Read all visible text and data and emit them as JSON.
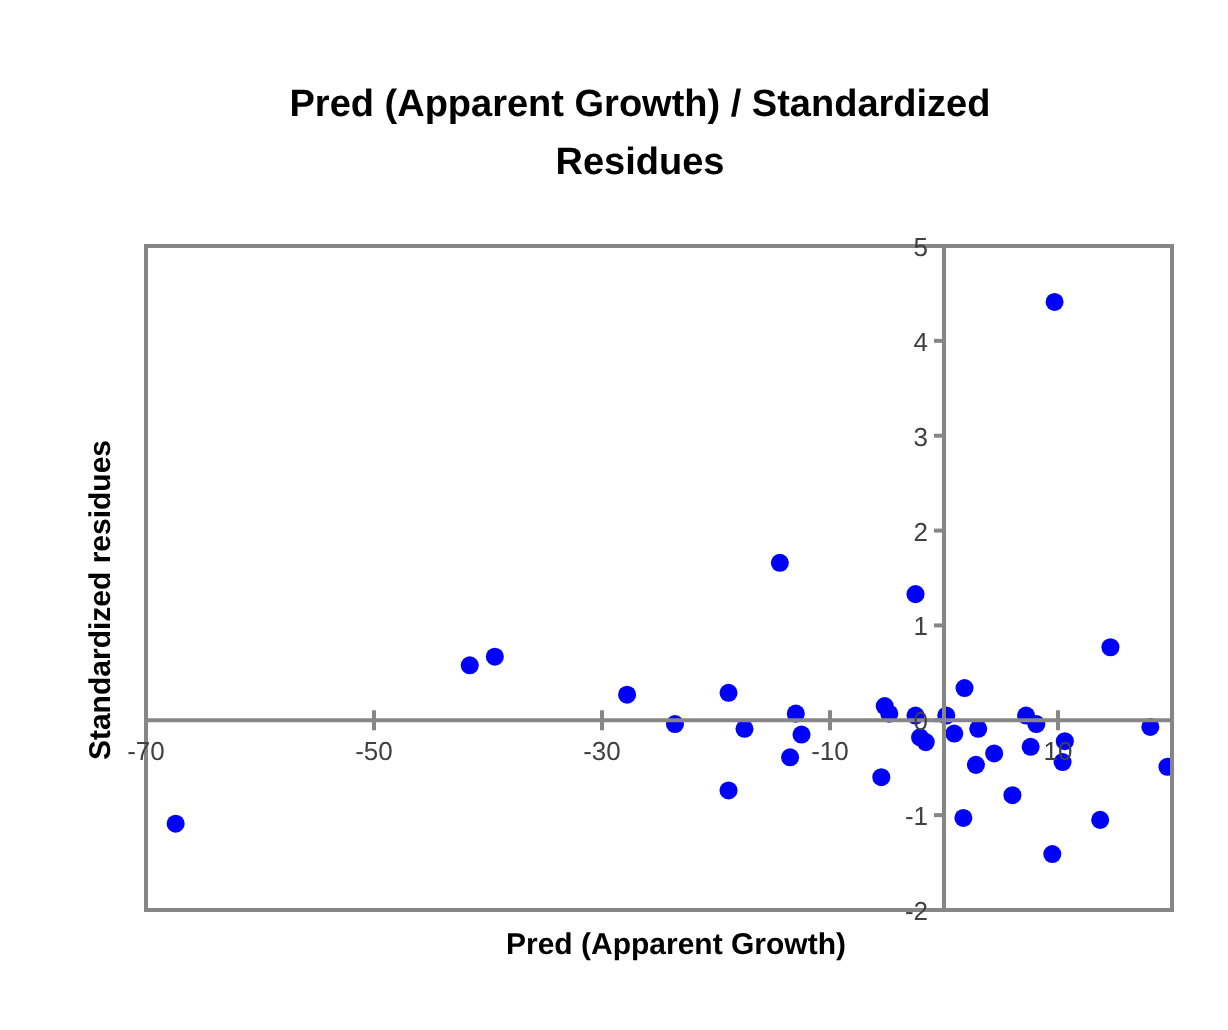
{
  "chart_data": {
    "type": "scatter",
    "title": "Pred (Apparent Growth) / Standardized Residues",
    "xlabel": "Pred (Apparent Growth)",
    "ylabel": "Standardized residues",
    "x": [
      -67.4,
      -41.6,
      -39.4,
      -27.8,
      -23.6,
      -18.9,
      -18.9,
      -17.5,
      -14.4,
      -13.5,
      -13.0,
      -12.5,
      -5.5,
      -5.2,
      -4.8,
      -2.5,
      -2.5,
      -2.1,
      -1.6,
      0.2,
      0.9,
      1.7,
      1.8,
      2.8,
      3.0,
      4.4,
      6.0,
      7.2,
      7.6,
      8.1,
      9.5,
      9.7,
      10.4,
      10.6,
      13.7,
      14.6,
      18.1,
      19.6
    ],
    "series": [
      {
        "color": "#0000ff",
        "values": [
          -1.09,
          0.58,
          0.67,
          0.27,
          -0.04,
          0.29,
          -0.74,
          -0.09,
          1.66,
          -0.39,
          0.07,
          -0.15,
          -0.6,
          0.15,
          0.07,
          1.33,
          0.05,
          -0.18,
          -0.23,
          0.05,
          -0.14,
          -1.03,
          0.34,
          -0.47,
          -0.09,
          -0.35,
          -0.79,
          0.05,
          -0.28,
          -0.04,
          -1.41,
          4.41,
          -0.44,
          -0.22,
          -1.05,
          0.77,
          -0.07,
          -0.49
        ]
      }
    ],
    "xlim": [
      -70,
      20
    ],
    "xticks": [
      -70,
      -50,
      -30,
      -10,
      10
    ],
    "ylim": [
      -2,
      5
    ],
    "yticks": [
      -2,
      -1,
      0,
      1,
      2,
      3,
      4,
      5
    ],
    "grid": false,
    "legend": false,
    "marker": "circle"
  }
}
